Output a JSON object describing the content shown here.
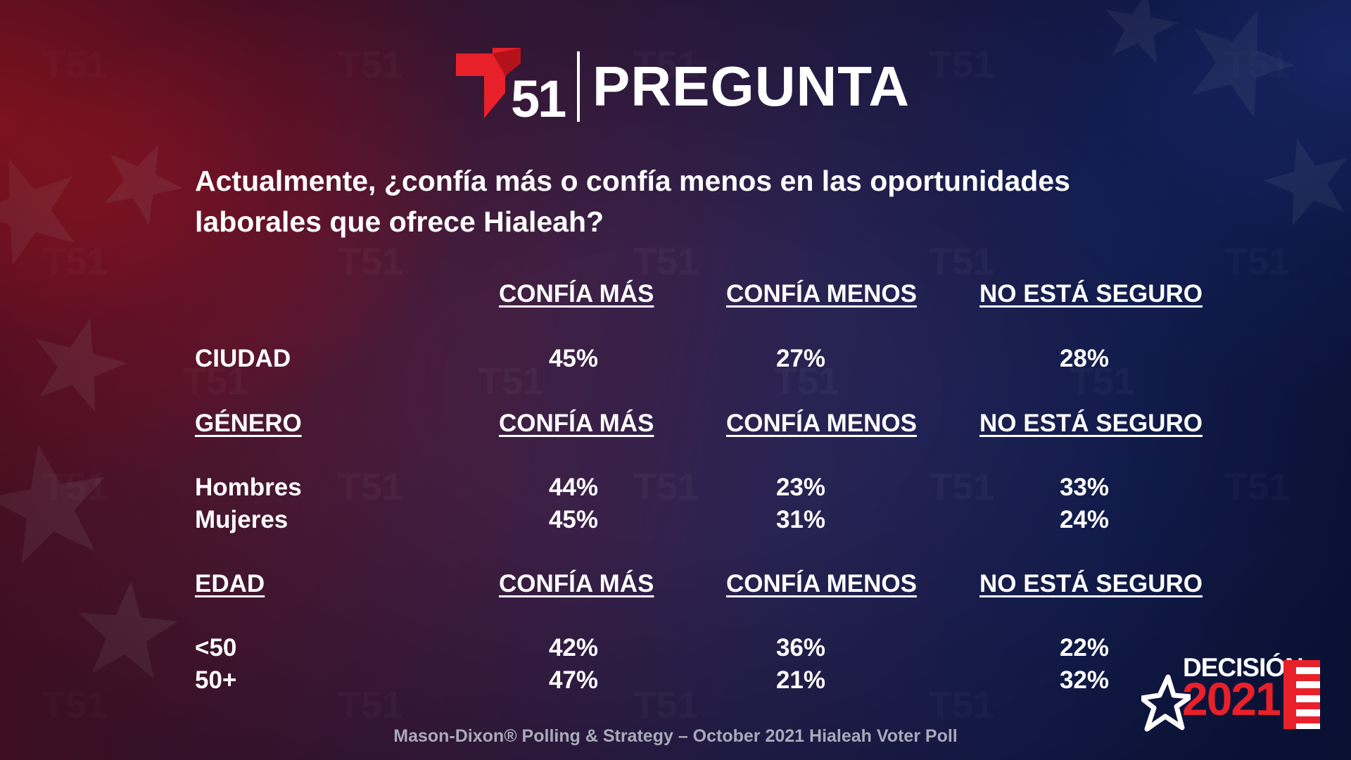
{
  "header": {
    "logo_number": "51",
    "title": "PREGUNTA"
  },
  "question": "Actualmente, ¿confía más o confía menos en las oportunidades laborales que ofrece Hialeah?",
  "columns": [
    "CONFÍA MÁS",
    "CONFÍA MENOS",
    "NO ESTÁ SEGURO"
  ],
  "sections": {
    "city": {
      "rows": [
        {
          "label": "CIUDAD",
          "values": [
            "45%",
            "27%",
            "28%"
          ]
        }
      ]
    },
    "gender": {
      "title": "GÉNERO",
      "rows": [
        {
          "label": "Hombres",
          "values": [
            "44%",
            "23%",
            "33%"
          ]
        },
        {
          "label": "Mujeres",
          "values": [
            "45%",
            "31%",
            "24%"
          ]
        }
      ]
    },
    "age": {
      "title": "EDAD",
      "rows": [
        {
          "label": "<50",
          "values": [
            "42%",
            "36%",
            "22%"
          ]
        },
        {
          "label": "50+",
          "values": [
            "47%",
            "21%",
            "32%"
          ]
        }
      ]
    }
  },
  "footer": "Mason-Dixon® Polling & Strategy – October 2021 Hialeah Voter Poll",
  "badge": {
    "line1": "DECISIÓN",
    "line2": "2021"
  },
  "colors": {
    "brand_red": "#e8202a",
    "text": "#ffffff",
    "footer_text": "#a9aab8"
  }
}
